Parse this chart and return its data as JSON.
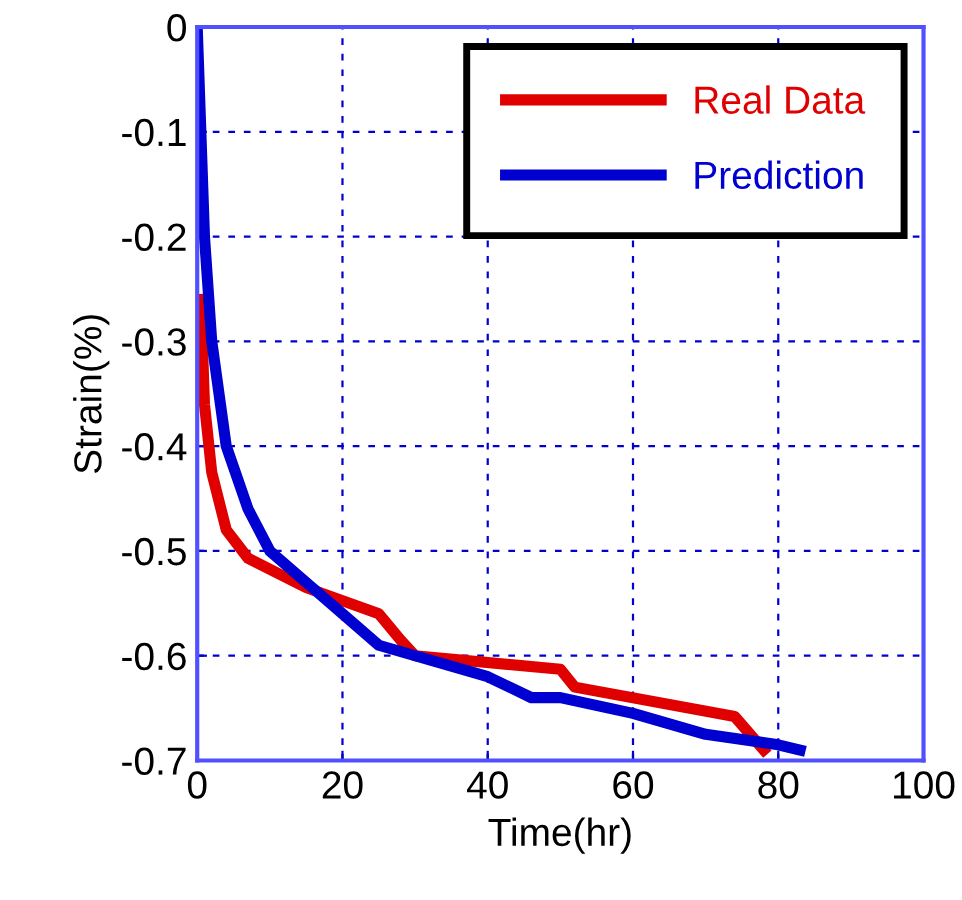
{
  "chart_data": {
    "type": "line",
    "xlabel": "Time(hr)",
    "ylabel": "Strain(%)",
    "xlim": [
      0,
      100
    ],
    "ylim": [
      -0.7,
      0
    ],
    "xticks": [
      0,
      20,
      40,
      60,
      80,
      100
    ],
    "yticks": [
      -0.7,
      -0.6,
      -0.5,
      -0.4,
      -0.3,
      -0.2,
      -0.1,
      0
    ],
    "grid": true,
    "legend": "top right",
    "line_style": "solid",
    "marker": "none",
    "series": [
      {
        "name": "Real Data",
        "color": "#e00000",
        "x": [
          0.5,
          1,
          2,
          4,
          7,
          15,
          25,
          28,
          30,
          50,
          52,
          74,
          78
        ],
        "values": [
          -0.26,
          -0.36,
          -0.425,
          -0.48,
          -0.507,
          -0.535,
          -0.56,
          -0.585,
          -0.6,
          -0.613,
          -0.63,
          -0.658,
          -0.69
        ]
      },
      {
        "name": "Prediction",
        "color": "#0000d0",
        "x": [
          0,
          0.5,
          1,
          2,
          4,
          7,
          10,
          15,
          20,
          25,
          30,
          40,
          46,
          50,
          60,
          70,
          80,
          83
        ],
        "values": [
          0,
          -0.1,
          -0.2,
          -0.3,
          -0.4,
          -0.46,
          -0.5,
          -0.53,
          -0.56,
          -0.59,
          -0.6,
          -0.62,
          -0.64,
          -0.64,
          -0.655,
          -0.675,
          -0.685,
          -0.69
        ]
      }
    ]
  }
}
